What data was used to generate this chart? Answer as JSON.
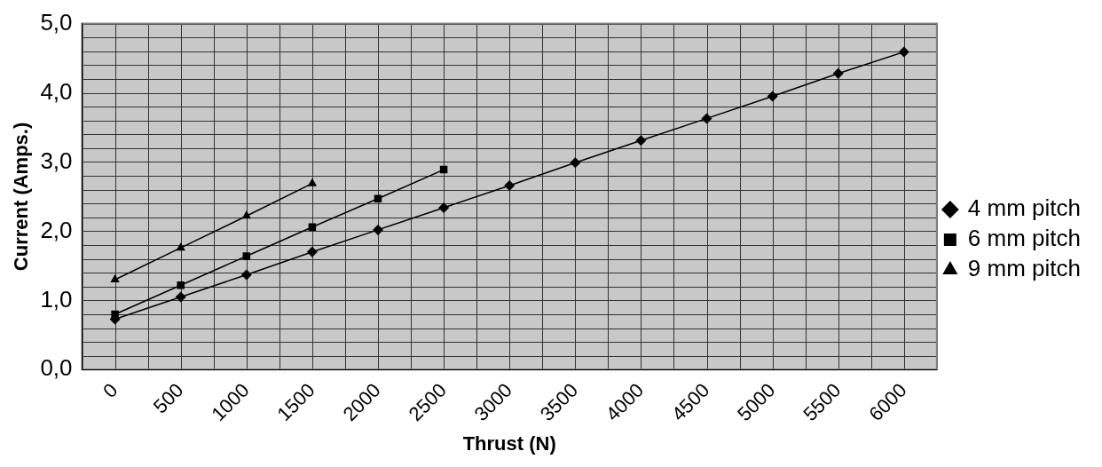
{
  "chart_data": {
    "type": "line",
    "xlabel": "Thrust (N)",
    "ylabel": "Current (Amps.)",
    "categories": [
      "0",
      "500",
      "1000",
      "1500",
      "2000",
      "2500",
      "3000",
      "3500",
      "4000",
      "4500",
      "5000",
      "5500",
      "6000"
    ],
    "series": [
      {
        "name": "4 mm pitch",
        "color": "#000000",
        "marker": "diamond",
        "values": [
          0.73,
          1.05,
          1.37,
          1.7,
          2.02,
          2.34,
          2.66,
          2.99,
          3.31,
          3.63,
          3.95,
          4.28,
          4.59
        ]
      },
      {
        "name": "6 mm pitch",
        "color": "#000000",
        "marker": "square",
        "values": [
          0.8,
          1.22,
          1.64,
          2.06,
          2.47,
          2.89,
          null,
          null,
          null,
          null,
          null,
          null,
          null
        ]
      },
      {
        "name": "9 mm pitch",
        "color": "#000000",
        "marker": "triangle",
        "values": [
          1.3,
          1.76,
          2.22,
          2.69,
          null,
          null,
          null,
          null,
          null,
          null,
          null,
          null,
          null
        ]
      }
    ],
    "ylim": [
      0,
      5
    ],
    "yticks": [
      {
        "value": 0,
        "label": "0,0"
      },
      {
        "value": 1,
        "label": "1,0"
      },
      {
        "value": 2,
        "label": "2,0"
      },
      {
        "value": 3,
        "label": "3,0"
      },
      {
        "value": 4,
        "label": "4,0"
      },
      {
        "value": 5,
        "label": "5,0"
      }
    ],
    "grid": true,
    "legend": "right",
    "line_style": "solid"
  }
}
